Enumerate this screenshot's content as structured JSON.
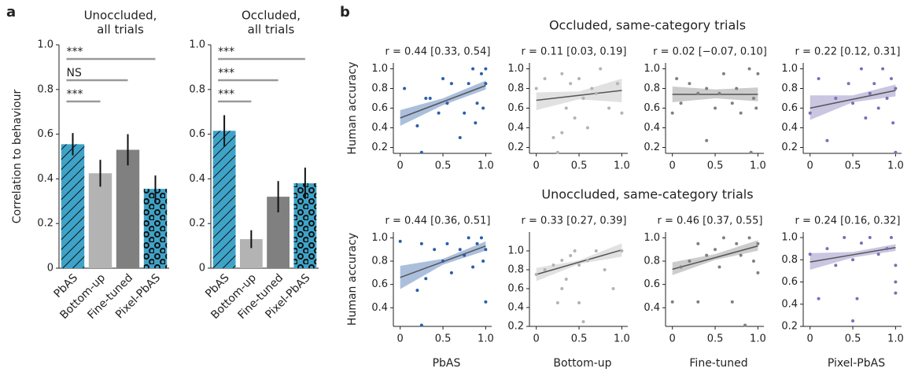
{
  "panel_labels": [
    "a",
    "b"
  ],
  "chart_data": [
    {
      "type": "bar",
      "title": [
        "Unoccluded,",
        "all trials"
      ],
      "ylabel": "Correlation to behaviour",
      "categories": [
        "PbAS",
        "Bottom-up",
        "Fine-tuned",
        "Pixel-PbAS"
      ],
      "values": [
        0.555,
        0.425,
        0.53,
        0.355
      ],
      "errors": [
        0.05,
        0.06,
        0.07,
        0.06
      ],
      "colors": [
        "#3ea3c8",
        "#b3b3b3",
        "#808080",
        "#3ea3c8"
      ],
      "patterns": [
        "hatch",
        "none",
        "none",
        "circles"
      ],
      "ylim": [
        0,
        1
      ],
      "yticks": [
        0,
        0.2,
        0.4,
        0.6,
        0.8,
        {
          "value": 1,
          "label": "1.0"
        }
      ],
      "significance": [
        {
          "label": "***",
          "to": 3
        },
        {
          "label": "NS",
          "to": 2
        },
        {
          "label": "***",
          "to": 1
        }
      ]
    },
    {
      "type": "bar",
      "title": [
        "Occluded,",
        "all trials"
      ],
      "categories": [
        "PbAS",
        "Bottom-up",
        "Fine-tuned",
        "Pixel-PbAS"
      ],
      "values": [
        0.615,
        0.13,
        0.32,
        0.38
      ],
      "errors": [
        0.07,
        0.04,
        0.07,
        0.07
      ],
      "colors": [
        "#3ea3c8",
        "#b3b3b3",
        "#808080",
        "#3ea3c8"
      ],
      "patterns": [
        "hatch",
        "none",
        "none",
        "circles"
      ],
      "ylim": [
        0,
        1
      ],
      "yticks": [
        0,
        0.2,
        0.4,
        0.6,
        0.8,
        {
          "value": 1,
          "label": "1.0"
        }
      ],
      "significance": [
        {
          "label": "***",
          "to": 3
        },
        {
          "label": "***",
          "to": 2
        },
        {
          "label": "***",
          "to": 1
        }
      ]
    },
    {
      "type": "scatter",
      "row_title": "Occluded, same-category trials",
      "ylabel": "Human accuracy",
      "annotation": "r = 0.44 [0.33, 0.54]",
      "color": "#2c5ea8",
      "x": [
        0.05,
        0.2,
        0.25,
        0.3,
        0.35,
        0.45,
        0.5,
        0.55,
        0.6,
        0.7,
        0.75,
        0.8,
        0.85,
        0.9,
        0.95,
        0.97,
        1.0,
        1.0,
        0.88
      ],
      "values": [
        0.8,
        0.42,
        0.15,
        0.7,
        0.7,
        0.55,
        0.9,
        0.65,
        0.85,
        0.3,
        0.55,
        0.85,
        1.0,
        0.65,
        0.95,
        0.6,
        1.0,
        0.85,
        0.45
      ],
      "fit": {
        "x": [
          0,
          0.5,
          1
        ],
        "y": [
          0.5,
          0.665,
          0.83
        ],
        "lower": [
          0.42,
          0.63,
          0.79
        ],
        "upper": [
          0.58,
          0.7,
          0.88
        ]
      },
      "xlim": [
        -0.08,
        1.07
      ],
      "ylim": [
        0.14,
        1.06
      ],
      "xticks": [
        0,
        0.5,
        {
          "value": 1,
          "label": "1.0"
        }
      ],
      "yticks": [
        0.2,
        0.4,
        0.6,
        0.8,
        {
          "value": 1,
          "label": "1.0"
        }
      ]
    },
    {
      "type": "scatter",
      "annotation": "r = 0.11 [0.03, 0.19]",
      "color": "#b3b3b3",
      "x": [
        0.0,
        0.1,
        0.2,
        0.25,
        0.3,
        0.35,
        0.4,
        0.45,
        0.5,
        0.55,
        0.6,
        0.65,
        0.7,
        0.75,
        0.85,
        0.95,
        1.0,
        0.3
      ],
      "values": [
        0.8,
        0.9,
        0.3,
        0.15,
        0.95,
        0.6,
        0.85,
        0.5,
        0.9,
        0.7,
        0.4,
        0.8,
        0.75,
        1.0,
        0.6,
        0.85,
        0.55,
        0.35
      ],
      "fit": {
        "x": [
          0,
          0.5,
          1
        ],
        "y": [
          0.68,
          0.73,
          0.78
        ],
        "lower": [
          0.58,
          0.69,
          0.66
        ],
        "upper": [
          0.76,
          0.77,
          0.9
        ]
      },
      "xlim": [
        -0.08,
        1.07
      ],
      "ylim": [
        0.14,
        1.06
      ],
      "xticks": [
        0,
        0.5,
        {
          "value": 1,
          "label": "1.0"
        }
      ],
      "yticks": [
        0.2,
        0.4,
        0.6,
        0.8,
        {
          "value": 1,
          "label": "1.0"
        }
      ]
    },
    {
      "type": "scatter",
      "annotation": "r = 0.02 [−0.07, 0.10]",
      "color": "#808080",
      "x": [
        0.0,
        0.05,
        0.1,
        0.2,
        0.3,
        0.4,
        0.5,
        0.55,
        0.6,
        0.7,
        0.75,
        0.8,
        0.9,
        0.95,
        1.0,
        0.98,
        0.92,
        0.4
      ],
      "values": [
        0.55,
        0.9,
        0.65,
        0.85,
        0.75,
        0.8,
        0.6,
        0.75,
        0.95,
        0.65,
        0.8,
        0.55,
        1.0,
        0.7,
        0.95,
        0.6,
        0.15,
        0.27
      ],
      "fit": {
        "x": [
          0,
          0.5,
          1
        ],
        "y": [
          0.74,
          0.74,
          0.74
        ],
        "lower": [
          0.66,
          0.7,
          0.67
        ],
        "upper": [
          0.82,
          0.79,
          0.81
        ]
      },
      "xlim": [
        -0.08,
        1.07
      ],
      "ylim": [
        0.14,
        1.06
      ],
      "xticks": [
        0,
        0.5,
        {
          "value": 1,
          "label": "1.0"
        }
      ],
      "yticks": [
        0.2,
        0.4,
        0.6,
        0.8,
        {
          "value": 1,
          "label": "1.0"
        }
      ]
    },
    {
      "type": "scatter",
      "annotation": "r = 0.22 [0.12, 0.31]",
      "color": "#7b6fb5",
      "x": [
        0.0,
        0.1,
        0.2,
        0.3,
        0.45,
        0.5,
        0.6,
        0.65,
        0.7,
        0.75,
        0.8,
        0.85,
        0.9,
        0.95,
        1.0,
        1.0,
        0.97
      ],
      "values": [
        0.55,
        0.9,
        0.27,
        0.7,
        0.85,
        0.65,
        1.0,
        0.5,
        0.75,
        0.85,
        0.6,
        1.0,
        0.7,
        0.9,
        0.8,
        0.15,
        0.45
      ],
      "fit": {
        "x": [
          0,
          0.5,
          1
        ],
        "y": [
          0.6,
          0.69,
          0.78
        ],
        "lower": [
          0.48,
          0.66,
          0.72
        ],
        "upper": [
          0.73,
          0.73,
          0.84
        ]
      },
      "xlim": [
        -0.08,
        1.07
      ],
      "ylim": [
        0.14,
        1.06
      ],
      "xticks": [
        0,
        0.5,
        {
          "value": 1,
          "label": "1.0"
        }
      ],
      "yticks": [
        0.2,
        0.4,
        0.6,
        0.8,
        {
          "value": 1,
          "label": "1.0"
        }
      ]
    },
    {
      "type": "scatter",
      "row_title": "Unoccluded, same-category trials",
      "ylabel": "Human accuracy",
      "xlabel": "PbAS",
      "annotation": "r = 0.44 [0.36, 0.51]",
      "color": "#2c5ea8",
      "x": [
        0.0,
        0.2,
        0.25,
        0.3,
        0.4,
        0.5,
        0.55,
        0.6,
        0.7,
        0.75,
        0.8,
        0.85,
        0.9,
        0.95,
        1.0,
        1.0,
        0.97,
        0.25
      ],
      "values": [
        0.97,
        0.55,
        0.25,
        0.65,
        0.9,
        0.8,
        0.95,
        0.7,
        0.9,
        0.85,
        1.0,
        0.75,
        0.95,
        1.0,
        0.9,
        0.45,
        0.8,
        0.95
      ],
      "fit": {
        "x": [
          0,
          0.5,
          1
        ],
        "y": [
          0.66,
          0.795,
          0.93
        ],
        "lower": [
          0.56,
          0.77,
          0.89
        ],
        "upper": [
          0.76,
          0.82,
          0.97
        ]
      },
      "xlim": [
        -0.08,
        1.07
      ],
      "ylim": [
        0.24,
        1.05
      ],
      "xticks": [
        0,
        0.5,
        {
          "value": 1,
          "label": "1.0"
        }
      ],
      "yticks": [
        0.4,
        0.6,
        0.8,
        {
          "value": 1,
          "label": "1.0"
        }
      ]
    },
    {
      "type": "scatter",
      "xlabel": "Bottom-up",
      "annotation": "r = 0.33 [0.27, 0.39]",
      "color": "#b3b3b3",
      "x": [
        0.0,
        0.1,
        0.2,
        0.25,
        0.3,
        0.35,
        0.4,
        0.45,
        0.5,
        0.55,
        0.6,
        0.7,
        0.8,
        0.9,
        0.5,
        0.3,
        1.0
      ],
      "values": [
        0.75,
        0.8,
        0.85,
        0.45,
        0.9,
        0.7,
        0.95,
        1.0,
        0.85,
        0.25,
        0.9,
        1.0,
        0.8,
        0.6,
        0.45,
        0.6,
        1.0
      ],
      "fit": {
        "x": [
          0,
          0.5,
          1
        ],
        "y": [
          0.75,
          0.88,
          1.01
        ],
        "lower": [
          0.68,
          0.86,
          0.94
        ],
        "upper": [
          0.82,
          0.9,
          1.08
        ]
      },
      "xlim": [
        -0.08,
        1.07
      ],
      "ylim": [
        0.2,
        1.2
      ],
      "xticks": [
        0,
        0.5,
        {
          "value": 1,
          "label": "1.0"
        }
      ],
      "yticks": [
        0.2,
        0.4,
        0.6,
        0.8,
        {
          "value": 1,
          "label": "1.0"
        }
      ]
    },
    {
      "type": "scatter",
      "xlabel": "Fine-tuned",
      "annotation": "r = 0.46 [0.37, 0.55]",
      "color": "#808080",
      "x": [
        0.0,
        0.1,
        0.2,
        0.3,
        0.4,
        0.5,
        0.55,
        0.6,
        0.7,
        0.75,
        0.8,
        0.85,
        0.9,
        0.95,
        1.0,
        1.0,
        0.3
      ],
      "values": [
        0.45,
        0.75,
        0.8,
        0.95,
        0.85,
        0.9,
        0.75,
        1.0,
        0.45,
        0.95,
        0.85,
        0.25,
        1.0,
        0.8,
        0.95,
        0.7,
        0.45
      ],
      "fit": {
        "x": [
          0,
          0.5,
          1
        ],
        "y": [
          0.73,
          0.83,
          0.93
        ],
        "lower": [
          0.68,
          0.81,
          0.89
        ],
        "upper": [
          0.79,
          0.86,
          0.98
        ]
      },
      "xlim": [
        -0.08,
        1.07
      ],
      "ylim": [
        0.24,
        1.05
      ],
      "xticks": [
        0,
        0.5,
        {
          "value": 1,
          "label": "1.0"
        }
      ],
      "yticks": [
        0.4,
        0.6,
        0.8,
        {
          "value": 1,
          "label": "1.0"
        }
      ]
    },
    {
      "type": "scatter",
      "xlabel": "Pixel-PbAS",
      "annotation": "r = 0.24 [0.16, 0.32]",
      "color": "#7b6fb5",
      "x": [
        0.0,
        0.1,
        0.2,
        0.3,
        0.4,
        0.5,
        0.55,
        0.6,
        0.7,
        0.8,
        0.9,
        0.95,
        1.0,
        1.0,
        1.0,
        0.5
      ],
      "values": [
        0.85,
        0.45,
        0.9,
        0.75,
        1.0,
        0.8,
        0.45,
        0.95,
        1.0,
        0.85,
        0.9,
        1.0,
        0.75,
        0.6,
        0.5,
        0.25
      ],
      "fit": {
        "x": [
          0,
          0.5,
          1
        ],
        "y": [
          0.78,
          0.845,
          0.91
        ],
        "lower": [
          0.71,
          0.82,
          0.88
        ],
        "upper": [
          0.86,
          0.87,
          0.94
        ]
      },
      "xlim": [
        -0.08,
        1.07
      ],
      "ylim": [
        0.2,
        1.05
      ],
      "xticks": [
        0,
        0.5,
        {
          "value": 1,
          "label": "1.0"
        }
      ],
      "yticks": [
        0.2,
        0.4,
        0.6,
        0.8,
        {
          "value": 1,
          "label": "1.0"
        }
      ]
    }
  ]
}
